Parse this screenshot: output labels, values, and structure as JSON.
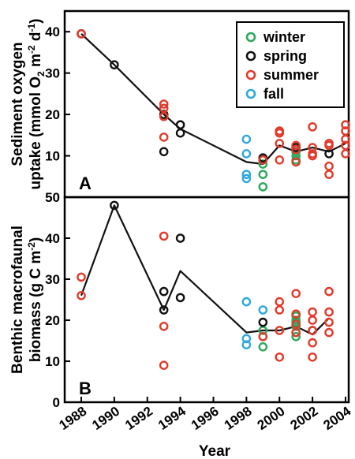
{
  "chart_data": {
    "type": "scatter",
    "shared_x": {
      "xlabel": "Year",
      "xlim": [
        1988,
        2004
      ],
      "ticks": [
        "1988",
        "1990",
        "1992",
        "1994",
        "1996",
        "1998",
        "2000",
        "2002",
        "2004"
      ]
    },
    "legend": {
      "placement": "top-right",
      "entries": [
        {
          "label": "winter",
          "color": "#2ca85a"
        },
        {
          "label": "spring",
          "color": "#111111"
        },
        {
          "label": "summer",
          "color": "#e23a2a"
        },
        {
          "label": "fall",
          "color": "#2ea8df"
        }
      ]
    },
    "panels": [
      {
        "letter": "A",
        "ylabel_line1": "Sediment oxygen",
        "ylabel_line2": "uptake (mmol O",
        "ylabel_sub1": "2",
        "ylabel_mid": " m",
        "ylabel_sup1": "-2",
        "ylabel_mid2": " d",
        "ylabel_sup2": "-1",
        "ylabel_end": ")",
        "ylim": [
          0,
          45
        ],
        "ticks": [
          "10",
          "20",
          "30",
          "40",
          "50"
        ],
        "tick_values": [
          10,
          20,
          30,
          40,
          50
        ],
        "series": [
          {
            "name": "winter",
            "points": [
              [
                1999,
                9
              ],
              [
                1999,
                9.5
              ],
              [
                1999,
                8
              ],
              [
                1999,
                5.5
              ],
              [
                1999,
                2.5
              ],
              [
                2001,
                9
              ],
              [
                2001,
                10
              ],
              [
                2001,
                11
              ]
            ]
          },
          {
            "name": "spring",
            "points": [
              [
                1988,
                39.5
              ],
              [
                1990,
                32
              ],
              [
                1993,
                20
              ],
              [
                1993,
                11
              ],
              [
                1994,
                17.5
              ],
              [
                1994,
                15.5
              ],
              [
                1999,
                9.5
              ],
              [
                2001,
                12
              ],
              [
                2003,
                10.5
              ]
            ]
          },
          {
            "name": "summer",
            "points": [
              [
                1988,
                39.5
              ],
              [
                1993,
                22.5
              ],
              [
                1993,
                21.5
              ],
              [
                1993,
                19.5
              ],
              [
                1993,
                14.5
              ],
              [
                1999,
                9
              ],
              [
                2000,
                16
              ],
              [
                2000,
                15.5
              ],
              [
                2000,
                13
              ],
              [
                2000,
                9
              ],
              [
                2001,
                12.5
              ],
              [
                2001,
                11.5
              ],
              [
                2001,
                8.5
              ],
              [
                2002,
                17
              ],
              [
                2002,
                12
              ],
              [
                2002,
                10.5
              ],
              [
                2002,
                10
              ],
              [
                2003,
                13
              ],
              [
                2003,
                12.5
              ],
              [
                2003,
                7.5
              ],
              [
                2003,
                5.5
              ],
              [
                2004,
                17.5
              ],
              [
                2004,
                16
              ],
              [
                2004,
                14
              ],
              [
                2004,
                12.5
              ],
              [
                2004,
                10.5
              ]
            ]
          },
          {
            "name": "fall",
            "points": [
              [
                1998,
                14
              ],
              [
                1998,
                10.5
              ],
              [
                1998,
                5.5
              ],
              [
                1998,
                4.5
              ]
            ]
          }
        ],
        "trend": [
          [
            1988,
            39.5
          ],
          [
            1990,
            32
          ],
          [
            1993,
            20
          ],
          [
            1994,
            16.5
          ],
          [
            1998,
            8.5
          ],
          [
            1999,
            8
          ],
          [
            2000,
            12.5
          ],
          [
            2001,
            11
          ],
          [
            2002,
            12
          ],
          [
            2003,
            11
          ],
          [
            2004,
            13
          ]
        ]
      },
      {
        "letter": "B",
        "ylabel_line1": "Benthic macrofaunal",
        "ylabel_line2": "biomass (g C m",
        "ylabel_sup": "-2",
        "ylabel_end": ")",
        "ylim": [
          0,
          50
        ],
        "ticks": [
          "0",
          "10",
          "20",
          "30",
          "40",
          "50"
        ],
        "tick_values": [
          0,
          10,
          20,
          30,
          40,
          50
        ],
        "series": [
          {
            "name": "winter",
            "points": [
              [
                1999,
                17.5
              ],
              [
                1999,
                16
              ],
              [
                1999,
                13.5
              ],
              [
                2001,
                21
              ],
              [
                2001,
                20
              ],
              [
                2001,
                19.5
              ],
              [
                2001,
                18.5
              ],
              [
                2001,
                17
              ],
              [
                2001,
                16
              ]
            ]
          },
          {
            "name": "spring",
            "points": [
              [
                1990,
                48
              ],
              [
                1993,
                27
              ],
              [
                1993,
                22.5
              ],
              [
                1994,
                40
              ],
              [
                1994,
                25.5
              ],
              [
                1999,
                19.5
              ],
              [
                2002,
                17.5
              ]
            ]
          },
          {
            "name": "summer",
            "points": [
              [
                1988,
                30.5
              ],
              [
                1988,
                26
              ],
              [
                1993,
                40.5
              ],
              [
                1993,
                18.5
              ],
              [
                1993,
                9
              ],
              [
                1999,
                16
              ],
              [
                2000,
                24.5
              ],
              [
                2000,
                22.5
              ],
              [
                2000,
                17.5
              ],
              [
                2000,
                11
              ],
              [
                2001,
                26.5
              ],
              [
                2001,
                21.5
              ],
              [
                2001,
                19
              ],
              [
                2001,
                17
              ],
              [
                2002,
                22
              ],
              [
                2002,
                20
              ],
              [
                2002,
                17.5
              ],
              [
                2002,
                14.5
              ],
              [
                2002,
                11
              ],
              [
                2003,
                27
              ],
              [
                2003,
                22
              ],
              [
                2003,
                19.5
              ],
              [
                2003,
                17
              ]
            ]
          },
          {
            "name": "fall",
            "points": [
              [
                1998,
                24.5
              ],
              [
                1998,
                15.5
              ],
              [
                1998,
                14
              ],
              [
                1999,
                22.5
              ]
            ]
          }
        ],
        "trend": [
          [
            1988,
            26
          ],
          [
            1990,
            48
          ],
          [
            1993,
            22.5
          ],
          [
            1994,
            32
          ],
          [
            1998,
            17
          ],
          [
            1999,
            17.5
          ],
          [
            2000,
            17.5
          ],
          [
            2001,
            18.5
          ],
          [
            2002,
            16.5
          ],
          [
            2003,
            20.5
          ]
        ]
      }
    ]
  }
}
